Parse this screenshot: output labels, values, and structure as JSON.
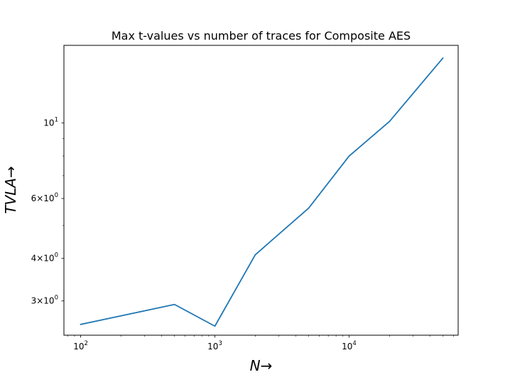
{
  "chart_data": {
    "type": "line",
    "title": "Max t-values vs number of traces for Composite AES",
    "xlabel": "N→",
    "ylabel": "TVLA→",
    "xscale": "log",
    "yscale": "log",
    "xlim": [
      75,
      65000
    ],
    "ylim": [
      2.38,
      16.9
    ],
    "grid": false,
    "x_ticks": [
      {
        "value": 100,
        "base": "10",
        "exp": "2"
      },
      {
        "value": 1000,
        "base": "10",
        "exp": "3"
      },
      {
        "value": 10000,
        "base": "10",
        "exp": "4"
      }
    ],
    "y_ticks": [
      {
        "value": 3,
        "base": "3×10",
        "exp": "0"
      },
      {
        "value": 4,
        "base": "4×10",
        "exp": "0"
      },
      {
        "value": 6,
        "base": "6×10",
        "exp": "0"
      },
      {
        "value": 10,
        "base": "10",
        "exp": "1"
      }
    ],
    "y_minor_ticks": [
      5,
      7,
      8,
      9
    ],
    "series": [
      {
        "color": "#1f77b4",
        "x": [
          100,
          500,
          1000,
          2000,
          5000,
          10000,
          20000,
          50000
        ],
        "y": [
          2.56,
          2.93,
          2.53,
          4.1,
          5.62,
          7.99,
          10.1,
          15.5
        ]
      }
    ]
  }
}
